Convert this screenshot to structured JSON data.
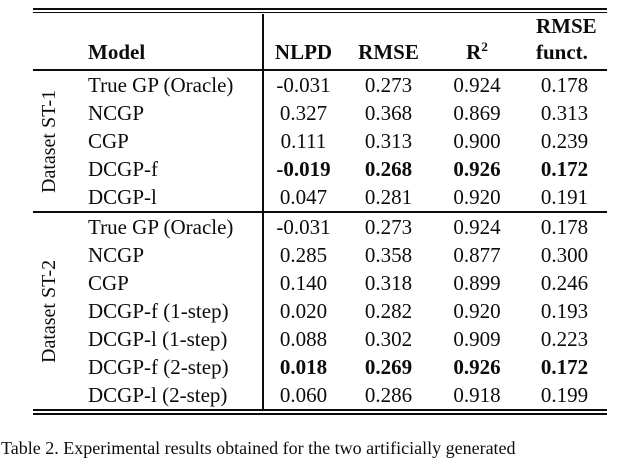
{
  "colors": {
    "background": "#ffffff",
    "text": "#0c0c0c",
    "rule": "#0c0c0c"
  },
  "header": {
    "model": "Model",
    "nlpd": "NLPD",
    "rmse": "RMSE",
    "r2": {
      "base": "R",
      "sup": "2"
    },
    "rmse_funct": {
      "line1": "RMSE",
      "line2": "funct."
    }
  },
  "sections": [
    {
      "label": "Dataset ST-1",
      "rows": [
        {
          "model": "True GP (Oracle)",
          "nlpd": "-0.031",
          "rmse": "0.273",
          "r2": "0.924",
          "rmse_funct": "0.178",
          "bold": false
        },
        {
          "model": "NCGP",
          "nlpd": "0.327",
          "rmse": "0.368",
          "r2": "0.869",
          "rmse_funct": "0.313",
          "bold": false
        },
        {
          "model": "CGP",
          "nlpd": "0.111",
          "rmse": "0.313",
          "r2": "0.900",
          "rmse_funct": "0.239",
          "bold": false
        },
        {
          "model": "DCGP-f",
          "nlpd": "-0.019",
          "rmse": "0.268",
          "r2": "0.926",
          "rmse_funct": "0.172",
          "bold": true
        },
        {
          "model": "DCGP-l",
          "nlpd": "0.047",
          "rmse": "0.281",
          "r2": "0.920",
          "rmse_funct": "0.191",
          "bold": false
        }
      ]
    },
    {
      "label": "Dataset ST-2",
      "rows": [
        {
          "model": "True GP (Oracle)",
          "nlpd": "-0.031",
          "rmse": "0.273",
          "r2": "0.924",
          "rmse_funct": "0.178",
          "bold": false
        },
        {
          "model": "NCGP",
          "nlpd": "0.285",
          "rmse": "0.358",
          "r2": "0.877",
          "rmse_funct": "0.300",
          "bold": false
        },
        {
          "model": "CGP",
          "nlpd": "0.140",
          "rmse": "0.318",
          "r2": "0.899",
          "rmse_funct": "0.246",
          "bold": false
        },
        {
          "model": "DCGP-f (1-step)",
          "nlpd": "0.020",
          "rmse": "0.282",
          "r2": "0.920",
          "rmse_funct": "0.193",
          "bold": false
        },
        {
          "model": "DCGP-l (1-step)",
          "nlpd": "0.088",
          "rmse": "0.302",
          "r2": "0.909",
          "rmse_funct": "0.223",
          "bold": false
        },
        {
          "model": "DCGP-f (2-step)",
          "nlpd": "0.018",
          "rmse": "0.269",
          "r2": "0.926",
          "rmse_funct": "0.172",
          "bold": true
        },
        {
          "model": "DCGP-l (2-step)",
          "nlpd": "0.060",
          "rmse": "0.286",
          "r2": "0.918",
          "rmse_funct": "0.199",
          "bold": false
        }
      ]
    }
  ],
  "caption": "Table 2. Experimental results obtained for the two artificially generated"
}
